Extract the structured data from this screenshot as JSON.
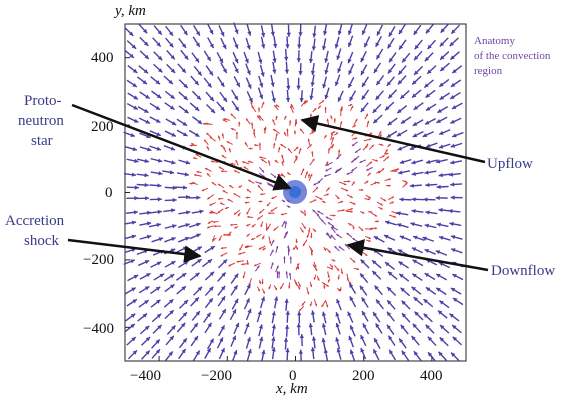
{
  "figure": {
    "x_axis_label": "x, km",
    "y_axis_label": "y, km",
    "x_ticks": [
      "−400",
      "−200",
      "0",
      "200",
      "400"
    ],
    "y_ticks": [
      "400",
      "200",
      "0",
      "−200",
      "−400"
    ],
    "note_lines": [
      "Anatomy",
      "of the convection",
      "region"
    ],
    "labels": {
      "protoneutron_star": [
        "Proto-",
        "neutron",
        "star"
      ],
      "accretion_shock": [
        "Accretion",
        "shock"
      ],
      "upflow": "Upflow",
      "downflow": "Downflow"
    },
    "colors": {
      "infall_arrows": "#4a3fa6",
      "upflow_arrows": "#d93a3a",
      "downflow_arrows": "#7a3aa0",
      "core": "#3b6fd6",
      "label_text": "#3a3a8c"
    }
  },
  "chart_data": {
    "type": "scatter",
    "xlabel": "x, km",
    "ylabel": "y, km",
    "xlim": [
      -500,
      500
    ],
    "ylim": [
      -500,
      500
    ],
    "grid": false,
    "xticks": [
      -400,
      -200,
      0,
      200,
      400
    ],
    "yticks": [
      -400,
      -200,
      0,
      200,
      400
    ],
    "annotations": [
      {
        "text": "Proto-neutron star",
        "x": 0,
        "y": 0
      },
      {
        "text": "Upflow",
        "x": 20,
        "y": 210
      },
      {
        "text": "Accretion shock",
        "x": -290,
        "y": -180
      },
      {
        "text": "Downflow",
        "x": 165,
        "y": -160
      }
    ],
    "regions": {
      "shock_radius_km": 300,
      "protoneutron_star_radius_km": 30,
      "downflow_plumes_deg": [
        -105,
        -45,
        150,
        30
      ],
      "downflow_plume_lengths_km": [
        230,
        200,
        130,
        200
      ]
    }
  }
}
